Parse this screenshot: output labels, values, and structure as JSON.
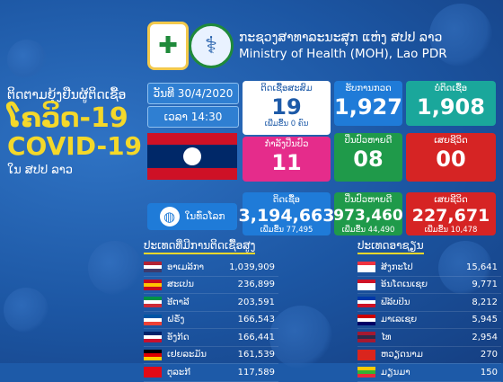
{
  "header": {
    "title_lao": "ກະຊວງສາທາລະນະສຸກ ແຫ່ງ ສປປ ລາວ",
    "title_en": "Ministry of Health (MOH), Lao PDR"
  },
  "left": {
    "line1": "ຕິດຕາມຍຸ້ງຢືນຜູ້ຕິດເຊື້ອ",
    "line2": "ໂຄວິດ-19",
    "line3": "COVID-19",
    "line4": "ໃນ ສປປ ລາວ"
  },
  "date": {
    "label": "ວັນທີ 30/4/2020"
  },
  "time": {
    "label": "ເວລາ 14:30"
  },
  "lao": {
    "cumulative": {
      "label": "ຕິດເຊື້ອສະສົມ",
      "value": "19",
      "sub": "ເພີ່ມຂື້ນ 0 ຄົນ"
    },
    "tested": {
      "label": "ຮັບການກວດ",
      "value": "1,927"
    },
    "negative": {
      "label": "ບໍ່ຕິດເຊື້ອ",
      "value": "1,908"
    },
    "treating": {
      "label": "ກຳລັງປິ່ນປົວ",
      "value": "11"
    },
    "recovered": {
      "label": "ປິ່ນປົວຫາຍດີ",
      "value": "08"
    },
    "deaths": {
      "label": "ເສຍຊີວິດ",
      "value": "00"
    }
  },
  "global": {
    "label": "ໃນທົ່ວໂລກ",
    "infected": {
      "label": "ຕິດເຊື້ອ",
      "value": "3,194,663",
      "sub": "ເພີ່ມຂື້ນ 77,495"
    },
    "recovered": {
      "label": "ປິ່ນປົວຫາຍດີ",
      "value": "973,460",
      "sub": "ເພີ່ມຂື້ນ 44,490"
    },
    "deaths": {
      "label": "ເສຍຊີວິດ",
      "value": "227,671",
      "sub": "ເພີ່ມຂື້ນ 10,478"
    }
  },
  "top_countries": {
    "title": "ປະເທດທີ່ມີການຕິດເຊື້ອສູງ",
    "rows": [
      {
        "name": "ອາເມລິກາ",
        "value": "1,039,909",
        "flag_colors": [
          "#b22234",
          "#ffffff",
          "#3c3b6e"
        ]
      },
      {
        "name": "ສະເປນ",
        "value": "236,899",
        "flag_colors": [
          "#c60b1e",
          "#ffc400",
          "#c60b1e"
        ]
      },
      {
        "name": "ອີຕາລີ",
        "value": "203,591",
        "flag_colors": [
          "#009246",
          "#ffffff",
          "#ce2b37"
        ]
      },
      {
        "name": "ຝຣັ່ງ",
        "value": "166,543",
        "flag_colors": [
          "#0055a4",
          "#ffffff",
          "#ef4135"
        ]
      },
      {
        "name": "ອັງກິດ",
        "value": "166,441",
        "flag_colors": [
          "#012169",
          "#ffffff",
          "#c8102e"
        ]
      },
      {
        "name": "ເຢຍລະມັນ",
        "value": "161,539",
        "flag_colors": [
          "#000000",
          "#dd0000",
          "#ffce00"
        ]
      },
      {
        "name": "ຕຸລະກີ",
        "value": "117,589",
        "flag_colors": [
          "#e30a17",
          "#e30a17",
          "#e30a17"
        ]
      }
    ]
  },
  "asean": {
    "title": "ປະເທດອາຊຽນ",
    "rows": [
      {
        "name": "ສິງກະໂປ",
        "value": "15,641",
        "flag_colors": [
          "#ef3340",
          "#ffffff",
          "#ffffff"
        ]
      },
      {
        "name": "ອິນໂດເນເຊຍ",
        "value": "9,771",
        "flag_colors": [
          "#ce1126",
          "#ffffff",
          "#ffffff"
        ]
      },
      {
        "name": "ຟີລິບປິນ",
        "value": "8,212",
        "flag_colors": [
          "#0038a8",
          "#ffffff",
          "#ce1126"
        ]
      },
      {
        "name": "ມາເລເຊຍ",
        "value": "5,945",
        "flag_colors": [
          "#cc0001",
          "#ffffff",
          "#010066"
        ]
      },
      {
        "name": "ໄທ",
        "value": "2,954",
        "flag_colors": [
          "#a51931",
          "#2d2a4a",
          "#a51931"
        ]
      },
      {
        "name": "ຫວຽດນາມ",
        "value": "270",
        "flag_colors": [
          "#da251d",
          "#da251d",
          "#da251d"
        ]
      },
      {
        "name": "ມຽນມາ",
        "value": "150",
        "flag_colors": [
          "#fecb00",
          "#34b233",
          "#ea2839"
        ]
      }
    ]
  }
}
